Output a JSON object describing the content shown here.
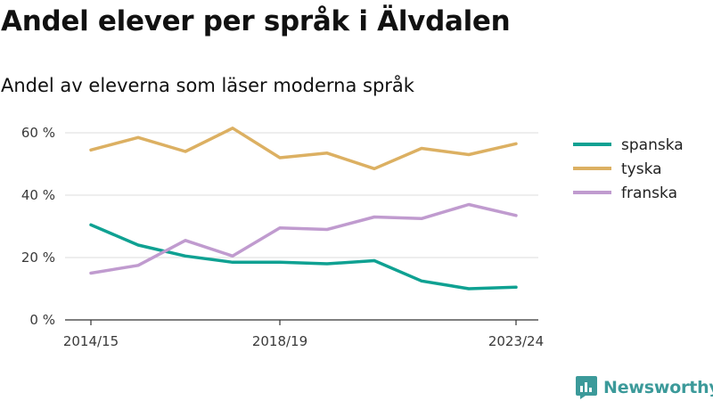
{
  "title": "Andel elever per språk i Älvdalen",
  "subtitle": "Andel av eleverna som läser moderna språk",
  "brand": "Newsworthy",
  "chart_data": {
    "type": "line",
    "x": [
      "2014/15",
      "2015/16",
      "2016/17",
      "2017/18",
      "2018/19",
      "2019/20",
      "2020/21",
      "2021/22",
      "2022/23",
      "2023/24"
    ],
    "x_tick_labels": [
      "2014/15",
      "2018/19",
      "2023/24"
    ],
    "y_ticks": [
      "0 %",
      "20 %",
      "40 %",
      "60 %"
    ],
    "ylim": [
      0,
      64
    ],
    "grid": true,
    "legend_position": "right",
    "series": [
      {
        "name": "spanska",
        "color": "#0fa192",
        "values": [
          30.5,
          24,
          20.5,
          18.5,
          18.5,
          18,
          19,
          12.5,
          10,
          10.5
        ]
      },
      {
        "name": "tyska",
        "color": "#dcb062",
        "values": [
          54.5,
          58.5,
          54,
          61.5,
          52,
          53.5,
          48.5,
          55,
          53,
          56.5
        ]
      },
      {
        "name": "franska",
        "color": "#c09bcf",
        "values": [
          15,
          17.5,
          25.5,
          20.5,
          29.5,
          29,
          33,
          32.5,
          37,
          33.5
        ]
      }
    ]
  }
}
